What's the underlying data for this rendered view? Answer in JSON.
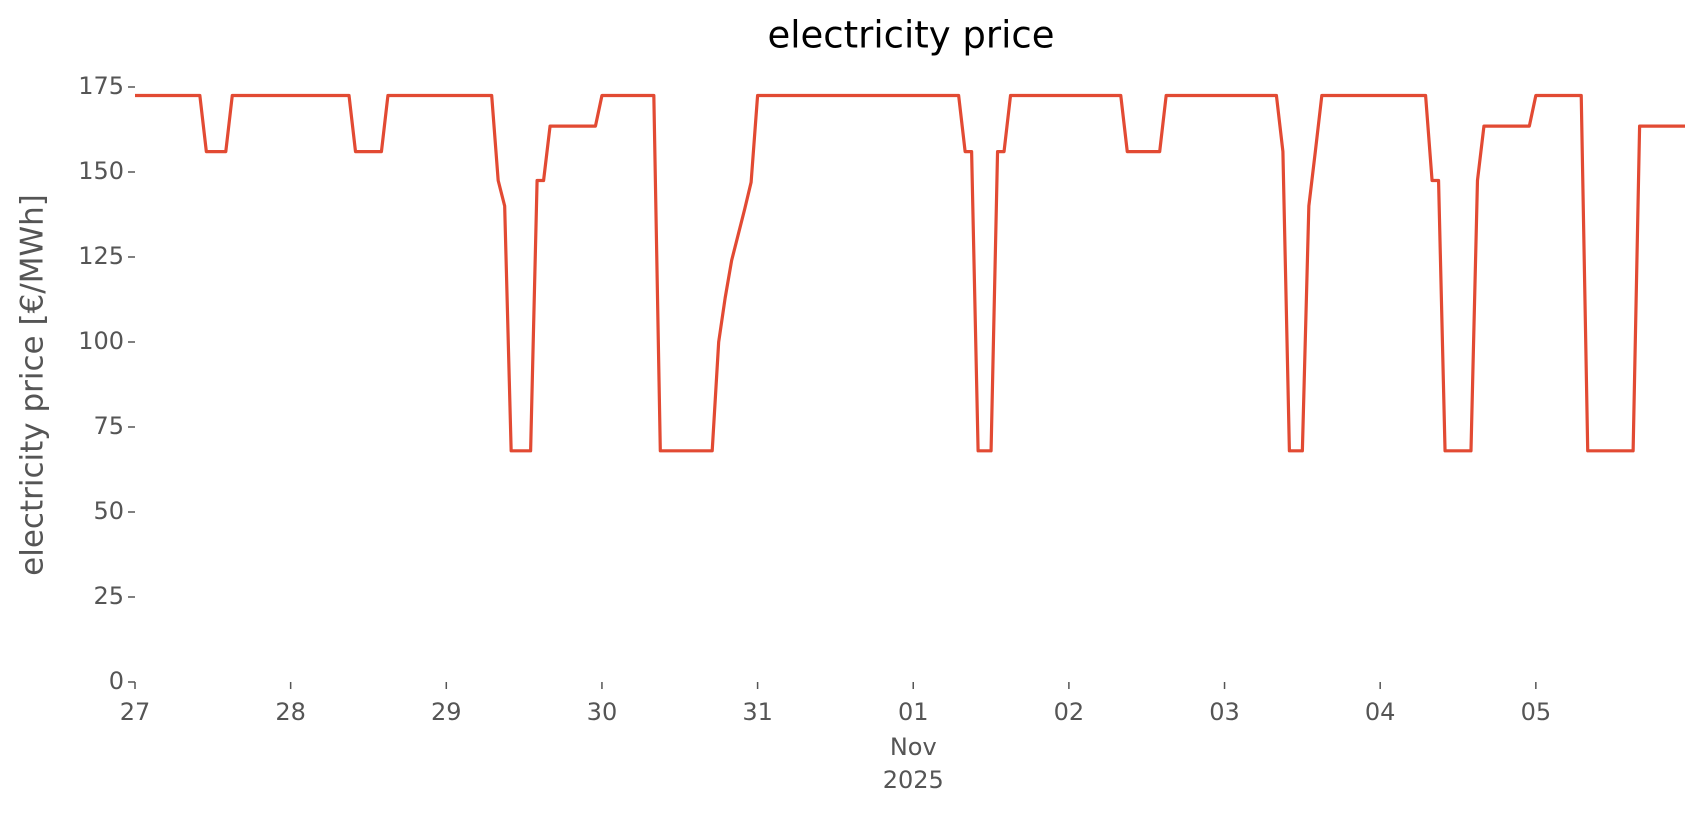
{
  "chart_data": {
    "type": "line",
    "title": "electricity price",
    "ylabel": "electricity price [€/MWh]",
    "x": [
      "2025-10-27 00:00",
      "2025-10-27 10:00",
      "2025-10-27 11:00",
      "2025-10-27 14:00",
      "2025-10-27 15:00",
      "2025-10-28 09:00",
      "2025-10-28 10:00",
      "2025-10-28 14:00",
      "2025-10-28 15:00",
      "2025-10-29 07:00",
      "2025-10-29 08:00",
      "2025-10-29 09:00",
      "2025-10-29 10:00",
      "2025-10-29 13:00",
      "2025-10-29 14:00",
      "2025-10-29 15:00",
      "2025-10-29 16:00",
      "2025-10-29 23:00",
      "2025-10-30 00:00",
      "2025-10-30 08:00",
      "2025-10-30 09:00",
      "2025-10-30 17:00",
      "2025-10-30 18:00",
      "2025-10-30 19:00",
      "2025-10-30 20:00",
      "2025-10-30 21:00",
      "2025-10-30 22:00",
      "2025-10-30 23:00",
      "2025-10-31 00:00",
      "2025-11-01 07:00",
      "2025-11-01 08:00",
      "2025-11-01 09:00",
      "2025-11-01 10:00",
      "2025-11-01 12:00",
      "2025-11-01 13:00",
      "2025-11-01 14:00",
      "2025-11-01 15:00",
      "2025-11-02 08:00",
      "2025-11-02 09:00",
      "2025-11-02 14:00",
      "2025-11-02 15:00",
      "2025-11-03 08:00",
      "2025-11-03 09:00",
      "2025-11-03 10:00",
      "2025-11-03 12:00",
      "2025-11-03 13:00",
      "2025-11-03 14:00",
      "2025-11-03 15:00",
      "2025-11-04 07:00",
      "2025-11-04 08:00",
      "2025-11-04 09:00",
      "2025-11-04 10:00",
      "2025-11-04 14:00",
      "2025-11-04 15:00",
      "2025-11-04 16:00",
      "2025-11-04 23:00",
      "2025-11-05 00:00",
      "2025-11-05 07:00",
      "2025-11-05 08:00",
      "2025-11-05 15:00",
      "2025-11-05 16:00",
      "2025-11-05 23:00"
    ],
    "series": [
      {
        "name": "electricity price",
        "color": "#e24a33",
        "values": [
          172.5,
          172.5,
          156,
          156,
          172.5,
          172.5,
          156,
          156,
          172.5,
          172.5,
          147.5,
          140,
          68,
          68,
          147.5,
          147.5,
          163.5,
          163.5,
          172.5,
          172.5,
          68,
          68,
          100,
          113,
          124,
          131.5,
          139,
          147,
          172.5,
          172.5,
          156,
          156,
          68,
          68,
          156,
          156,
          172.5,
          172.5,
          156,
          156,
          172.5,
          172.5,
          156,
          68,
          68,
          140,
          156,
          172.5,
          172.5,
          147.5,
          147.5,
          68,
          68,
          147.5,
          163.5,
          163.5,
          172.5,
          172.5,
          68,
          68,
          163.5,
          163.5
        ]
      }
    ],
    "xlim": [
      "2025-10-27 00:00",
      "2025-11-05 23:00"
    ],
    "xticks": [
      {
        "value": "2025-10-27 00:00",
        "label": "27"
      },
      {
        "value": "2025-10-28 00:00",
        "label": "28"
      },
      {
        "value": "2025-10-29 00:00",
        "label": "29"
      },
      {
        "value": "2025-10-30 00:00",
        "label": "30"
      },
      {
        "value": "2025-10-31 00:00",
        "label": "31"
      },
      {
        "value": "2025-11-01 00:00",
        "label": "01",
        "sublabels": [
          "Nov",
          "2025"
        ]
      },
      {
        "value": "2025-11-02 00:00",
        "label": "02"
      },
      {
        "value": "2025-11-03 00:00",
        "label": "03"
      },
      {
        "value": "2025-11-04 00:00",
        "label": "04"
      },
      {
        "value": "2025-11-05 00:00",
        "label": "05"
      }
    ],
    "ylim": [
      0,
      175
    ],
    "yticks": [
      0,
      25,
      50,
      75,
      100,
      125,
      150,
      175
    ],
    "grid": false
  }
}
